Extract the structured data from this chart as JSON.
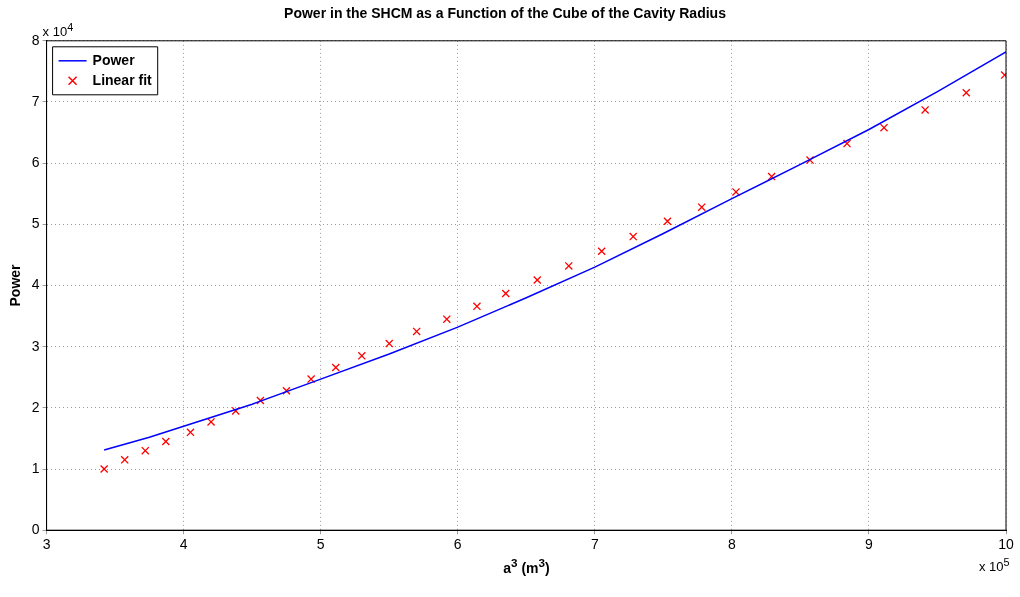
{
  "chart_data": {
    "type": "line",
    "title": "Power in the SHCM as a Function of the Cube of the Cavity Radius",
    "xlabel": "a$^{3}$ (m$^{3}$)",
    "ylabel": "Power",
    "annotations": [
      "x 10$^{4}$",
      "x 10$^{5}$"
    ],
    "xlim": [
      3,
      10
    ],
    "xticks": [
      3,
      4,
      5,
      6,
      7,
      8,
      9,
      10
    ],
    "ylim": [
      0,
      8
    ],
    "yticks": [
      0,
      1,
      2,
      3,
      4,
      5,
      6,
      7,
      8
    ],
    "grid": true,
    "legend": "top left",
    "series": [
      {
        "name": "Power",
        "type": "line",
        "color": "#0000ff",
        "marker": "none",
        "line_style": "solid",
        "x": [
          3.42,
          3.75,
          4.0,
          4.5,
          5.0,
          5.5,
          6.0,
          6.5,
          7.0,
          7.5,
          8.0,
          8.5,
          9.0,
          9.5,
          10.0
        ],
        "values": [
          1.31,
          1.52,
          1.7,
          2.06,
          2.47,
          2.88,
          3.32,
          3.8,
          4.3,
          4.85,
          5.42,
          5.98,
          6.55,
          7.17,
          7.82
        ]
      },
      {
        "name": "Linear fit",
        "type": "scatter",
        "color": "#ff0000",
        "marker": "cross",
        "x": [
          3.42,
          3.57,
          3.72,
          3.87,
          4.05,
          4.2,
          4.38,
          4.56,
          4.75,
          4.93,
          5.11,
          5.3,
          5.5,
          5.7,
          5.92,
          6.14,
          6.35,
          6.58,
          6.81,
          7.05,
          7.28,
          7.53,
          7.78,
          8.03,
          8.29,
          8.57,
          8.84,
          9.11,
          9.41,
          9.71,
          9.99
        ],
        "values": [
          1.0,
          1.15,
          1.3,
          1.45,
          1.6,
          1.77,
          1.95,
          2.12,
          2.28,
          2.47,
          2.66,
          2.85,
          3.05,
          3.25,
          3.45,
          3.66,
          3.87,
          4.09,
          4.32,
          4.56,
          4.8,
          5.05,
          5.28,
          5.53,
          5.78,
          6.05,
          6.32,
          6.58,
          6.87,
          7.15,
          7.44
        ]
      }
    ]
  }
}
